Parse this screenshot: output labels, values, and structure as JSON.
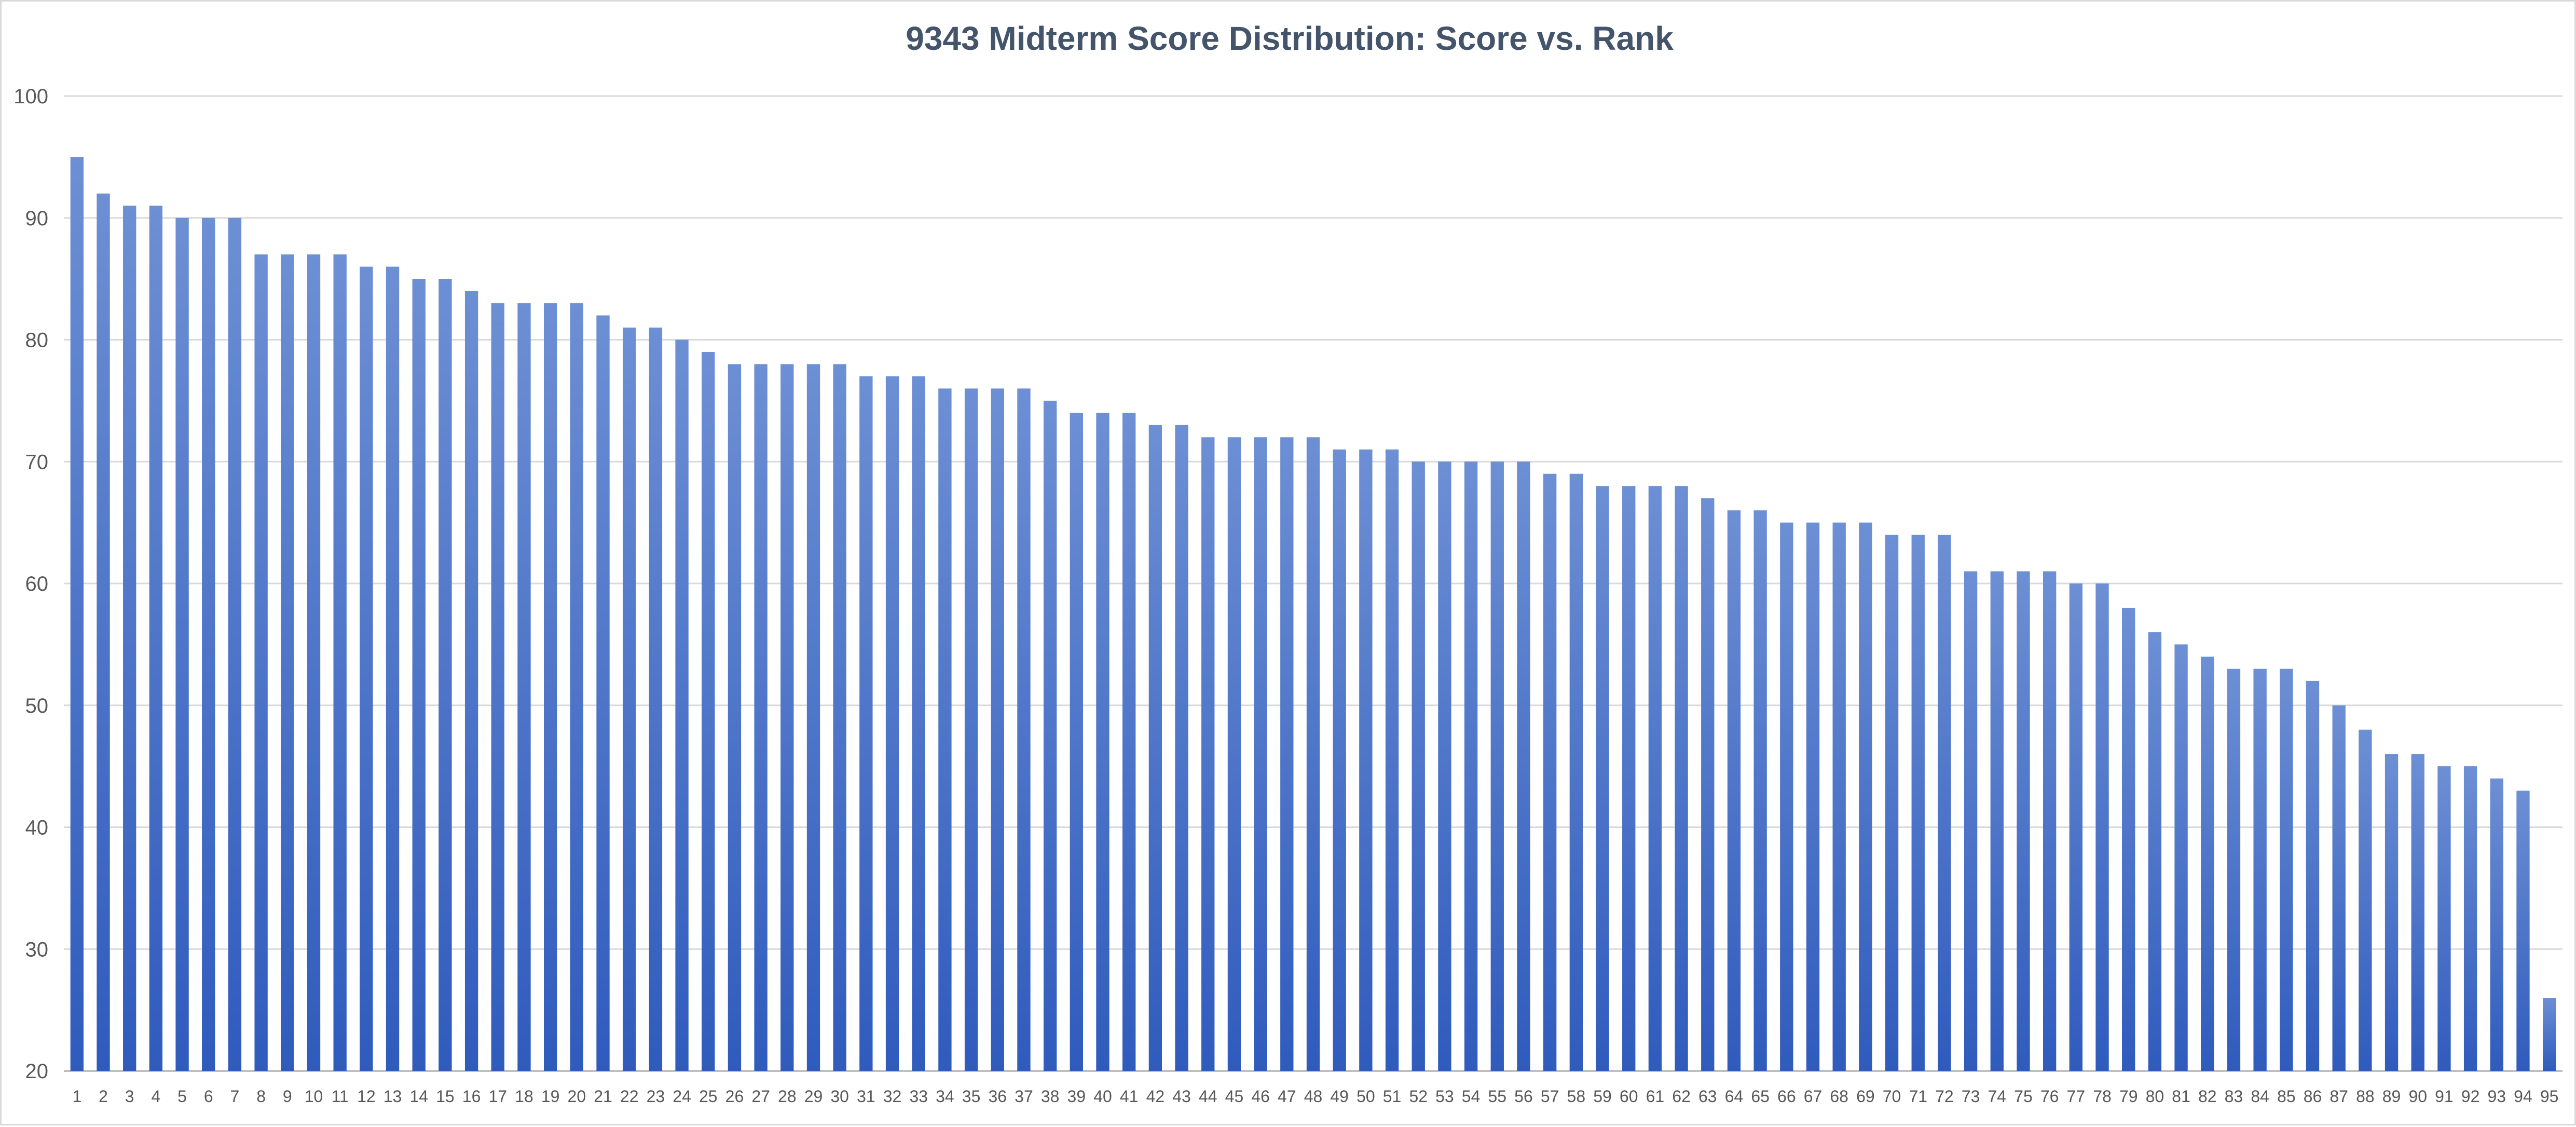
{
  "chart_data": {
    "type": "bar",
    "title": "9343 Midterm Score Distribution: Score vs. Rank",
    "xlabel": "",
    "ylabel": "",
    "ylim": [
      20,
      100
    ],
    "yticks": [
      20,
      30,
      40,
      50,
      60,
      70,
      80,
      90,
      100
    ],
    "grid": true,
    "legend": "none",
    "colors": {
      "bar_top": "#6d8fd4",
      "bar_bottom": "#2f5bbd",
      "grid": "#d9d9d9",
      "axis": "#bfbfbf",
      "title": "#44546a",
      "tick": "#595959"
    },
    "categories": [
      "1",
      "2",
      "3",
      "4",
      "5",
      "6",
      "7",
      "8",
      "9",
      "10",
      "11",
      "12",
      "13",
      "14",
      "15",
      "16",
      "17",
      "18",
      "19",
      "20",
      "21",
      "22",
      "23",
      "24",
      "25",
      "26",
      "27",
      "28",
      "29",
      "30",
      "31",
      "32",
      "33",
      "34",
      "35",
      "36",
      "37",
      "38",
      "39",
      "40",
      "41",
      "42",
      "43",
      "44",
      "45",
      "46",
      "47",
      "48",
      "49",
      "50",
      "51",
      "52",
      "53",
      "54",
      "55",
      "56",
      "57",
      "58",
      "59",
      "60",
      "61",
      "62",
      "63",
      "64",
      "65",
      "66",
      "67",
      "68",
      "69",
      "70",
      "71",
      "72",
      "73",
      "74",
      "75",
      "76",
      "77",
      "78",
      "79",
      "80",
      "81",
      "82",
      "83",
      "84",
      "85",
      "86",
      "87",
      "88",
      "89",
      "90",
      "91",
      "92",
      "93",
      "94",
      "95"
    ],
    "values": [
      95,
      92,
      91,
      91,
      90,
      90,
      90,
      87,
      87,
      87,
      87,
      86,
      86,
      85,
      85,
      84,
      83,
      83,
      83,
      83,
      82,
      81,
      81,
      80,
      79,
      78,
      78,
      78,
      78,
      78,
      77,
      77,
      77,
      76,
      76,
      76,
      76,
      75,
      74,
      74,
      74,
      73,
      73,
      72,
      72,
      72,
      72,
      72,
      71,
      71,
      71,
      70,
      70,
      70,
      70,
      70,
      69,
      69,
      68,
      68,
      68,
      68,
      67,
      66,
      66,
      65,
      65,
      65,
      65,
      64,
      64,
      64,
      61,
      61,
      61,
      61,
      60,
      60,
      58,
      56,
      55,
      54,
      53,
      53,
      53,
      52,
      50,
      48,
      46,
      46,
      45,
      45,
      44,
      43,
      26
    ]
  }
}
